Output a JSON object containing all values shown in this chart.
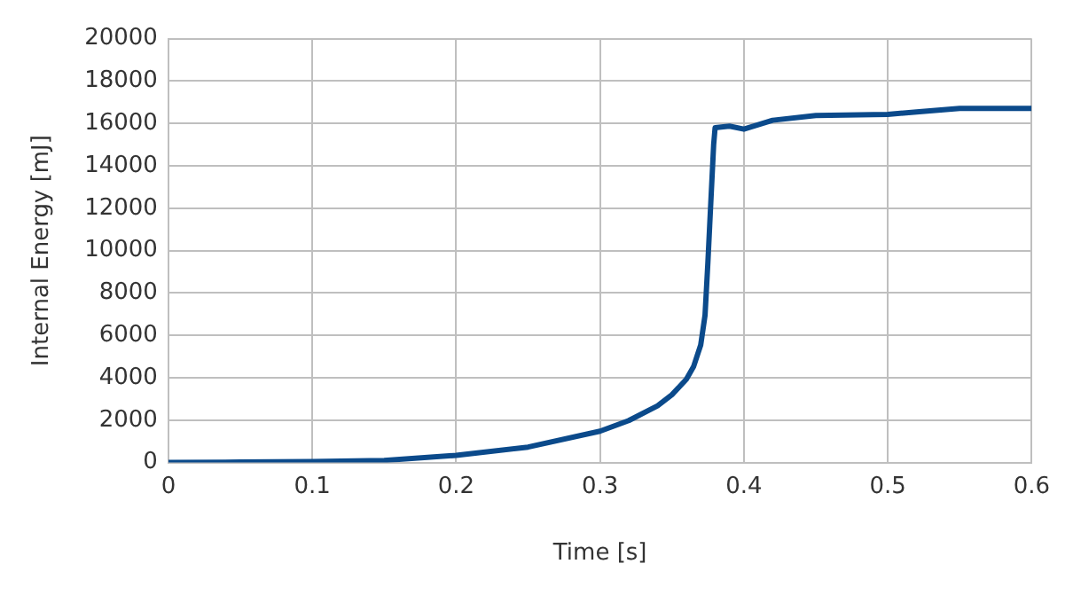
{
  "chart_data": {
    "type": "line",
    "xlabel": "Time [s]",
    "ylabel": "Internal Energy [mJ]",
    "x": [
      0,
      0.05,
      0.1,
      0.15,
      0.2,
      0.25,
      0.3,
      0.32,
      0.34,
      0.35,
      0.36,
      0.365,
      0.37,
      0.373,
      0.375,
      0.377,
      0.379,
      0.38,
      0.39,
      0.4,
      0.42,
      0.45,
      0.5,
      0.52,
      0.55,
      0.6
    ],
    "series": [
      {
        "color": "#0b4a8b",
        "values": [
          0,
          20,
          50,
          100,
          340,
          730,
          1480,
          1980,
          2680,
          3200,
          3930,
          4520,
          5550,
          6950,
          9460,
          12250,
          15000,
          15800,
          15870,
          15730,
          16150,
          16370,
          16430,
          16540,
          16710,
          16710
        ]
      }
    ],
    "xlim": [
      0,
      0.6
    ],
    "xticks": [
      0,
      0.1,
      0.2,
      0.3,
      0.4,
      0.5,
      0.6
    ],
    "ylim": [
      0,
      20000
    ],
    "yticks": [
      0,
      2000,
      4000,
      6000,
      8000,
      10000,
      12000,
      14000,
      16000,
      18000,
      20000
    ],
    "grid": true,
    "legend": false,
    "marker": "none",
    "line_style": "solid"
  }
}
